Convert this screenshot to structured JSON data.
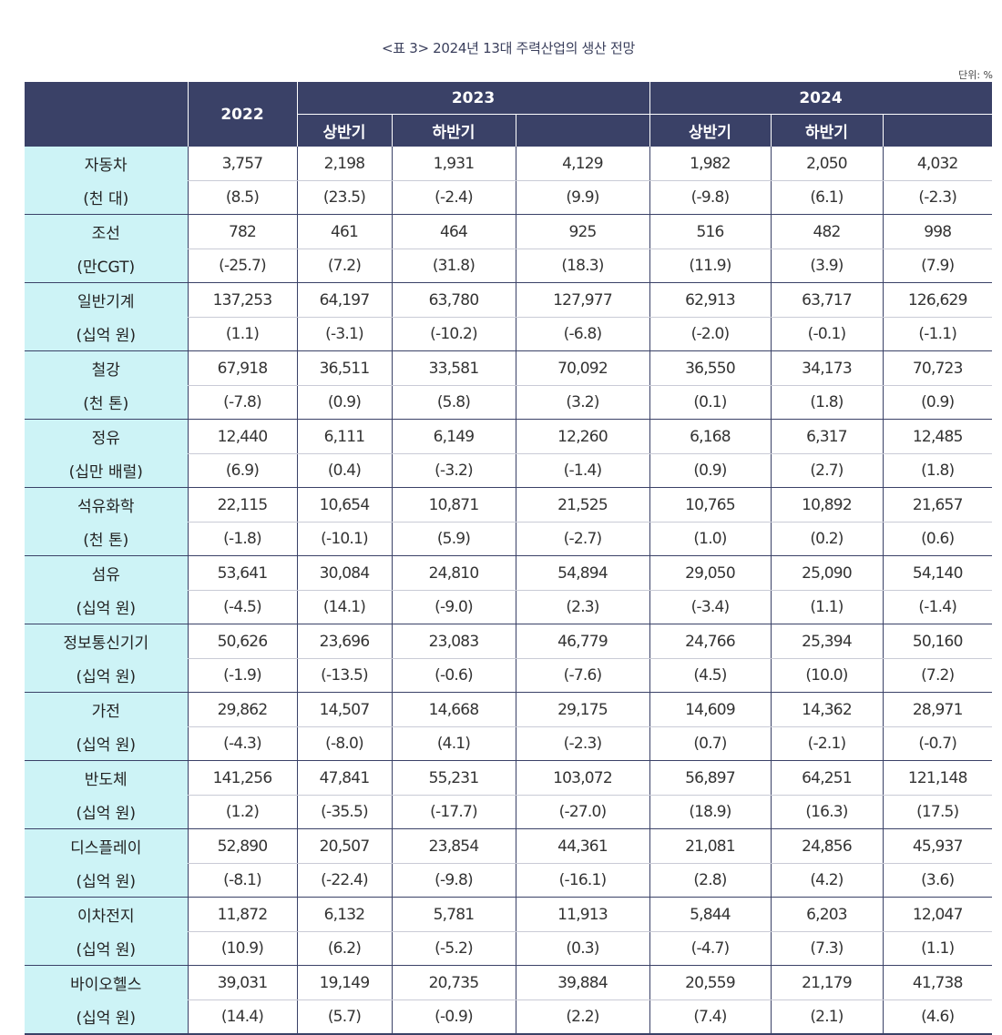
{
  "caption": "<표 3> 2024년 13대 주력산업의 생산 전망",
  "unit": "단위: %",
  "header": {
    "y2022": "2022",
    "y2023": "2023",
    "y2024": "2024",
    "h1": "상반기",
    "h2": "하반기",
    "annual": ""
  },
  "rows": [
    {
      "name": "자동차",
      "unit": "(천 대)",
      "vals": [
        "3,757",
        "2,198",
        "1,931",
        "4,129",
        "1,982",
        "2,050",
        "4,032"
      ],
      "growth": [
        "(8.5)",
        "(23.5)",
        "(-2.4)",
        "(9.9)",
        "(-9.8)",
        "(6.1)",
        "(-2.3)"
      ]
    },
    {
      "name": "조선",
      "unit": "(만CGT)",
      "vals": [
        "782",
        "461",
        "464",
        "925",
        "516",
        "482",
        "998"
      ],
      "growth": [
        "(-25.7)",
        "(7.2)",
        "(31.8)",
        "(18.3)",
        "(11.9)",
        "(3.9)",
        "(7.9)"
      ]
    },
    {
      "name": "일반기계",
      "unit": "(십억 원)",
      "vals": [
        "137,253",
        "64,197",
        "63,780",
        "127,977",
        "62,913",
        "63,717",
        "126,629"
      ],
      "growth": [
        "(1.1)",
        "(-3.1)",
        "(-10.2)",
        "(-6.8)",
        "(-2.0)",
        "(-0.1)",
        "(-1.1)"
      ]
    },
    {
      "name": "철강",
      "unit": "(천 톤)",
      "vals": [
        "67,918",
        "36,511",
        "33,581",
        "70,092",
        "36,550",
        "34,173",
        "70,723"
      ],
      "growth": [
        "(-7.8)",
        "(0.9)",
        "(5.8)",
        "(3.2)",
        "(0.1)",
        "(1.8)",
        "(0.9)"
      ]
    },
    {
      "name": "정유",
      "unit": "(십만 배럴)",
      "vals": [
        "12,440",
        "6,111",
        "6,149",
        "12,260",
        "6,168",
        "6,317",
        "12,485"
      ],
      "growth": [
        "(6.9)",
        "(0.4)",
        "(-3.2)",
        "(-1.4)",
        "(0.9)",
        "(2.7)",
        "(1.8)"
      ]
    },
    {
      "name": "석유화학",
      "unit": "(천 톤)",
      "vals": [
        "22,115",
        "10,654",
        "10,871",
        "21,525",
        "10,765",
        "10,892",
        "21,657"
      ],
      "growth": [
        "(-1.8)",
        "(-10.1)",
        "(5.9)",
        "(-2.7)",
        "(1.0)",
        "(0.2)",
        "(0.6)"
      ]
    },
    {
      "name": "섬유",
      "unit": "(십억 원)",
      "vals": [
        "53,641",
        "30,084",
        "24,810",
        "54,894",
        "29,050",
        "25,090",
        "54,140"
      ],
      "growth": [
        "(-4.5)",
        "(14.1)",
        "(-9.0)",
        "(2.3)",
        "(-3.4)",
        "(1.1)",
        "(-1.4)"
      ]
    },
    {
      "name": "정보통신기기",
      "unit": "(십억 원)",
      "vals": [
        "50,626",
        "23,696",
        "23,083",
        "46,779",
        "24,766",
        "25,394",
        "50,160"
      ],
      "growth": [
        "(-1.9)",
        "(-13.5)",
        "(-0.6)",
        "(-7.6)",
        "(4.5)",
        "(10.0)",
        "(7.2)"
      ]
    },
    {
      "name": "가전",
      "unit": "(십억 원)",
      "vals": [
        "29,862",
        "14,507",
        "14,668",
        "29,175",
        "14,609",
        "14,362",
        "28,971"
      ],
      "growth": [
        "(-4.3)",
        "(-8.0)",
        "(4.1)",
        "(-2.3)",
        "(0.7)",
        "(-2.1)",
        "(-0.7)"
      ]
    },
    {
      "name": "반도체",
      "unit": "(십억 원)",
      "vals": [
        "141,256",
        "47,841",
        "55,231",
        "103,072",
        "56,897",
        "64,251",
        "121,148"
      ],
      "growth": [
        "(1.2)",
        "(-35.5)",
        "(-17.7)",
        "(-27.0)",
        "(18.9)",
        "(16.3)",
        "(17.5)"
      ]
    },
    {
      "name": "디스플레이",
      "unit": "(십억 원)",
      "vals": [
        "52,890",
        "20,507",
        "23,854",
        "44,361",
        "21,081",
        "24,856",
        "45,937"
      ],
      "growth": [
        "(-8.1)",
        "(-22.4)",
        "(-9.8)",
        "(-16.1)",
        "(2.8)",
        "(4.2)",
        "(3.6)"
      ]
    },
    {
      "name": "이차전지",
      "unit": "(십억 원)",
      "vals": [
        "11,872",
        "6,132",
        "5,781",
        "11,913",
        "5,844",
        "6,203",
        "12,047"
      ],
      "growth": [
        "(10.9)",
        "(6.2)",
        "(-5.2)",
        "(0.3)",
        "(-4.7)",
        "(7.3)",
        "(1.1)"
      ]
    },
    {
      "name": "바이오헬스",
      "unit": "(십억 원)",
      "vals": [
        "39,031",
        "19,149",
        "20,735",
        "39,884",
        "20,559",
        "21,179",
        "41,738"
      ],
      "growth": [
        "(14.4)",
        "(5.7)",
        "(-0.9)",
        "(2.2)",
        "(7.4)",
        "(2.1)",
        "(4.6)"
      ]
    }
  ]
}
